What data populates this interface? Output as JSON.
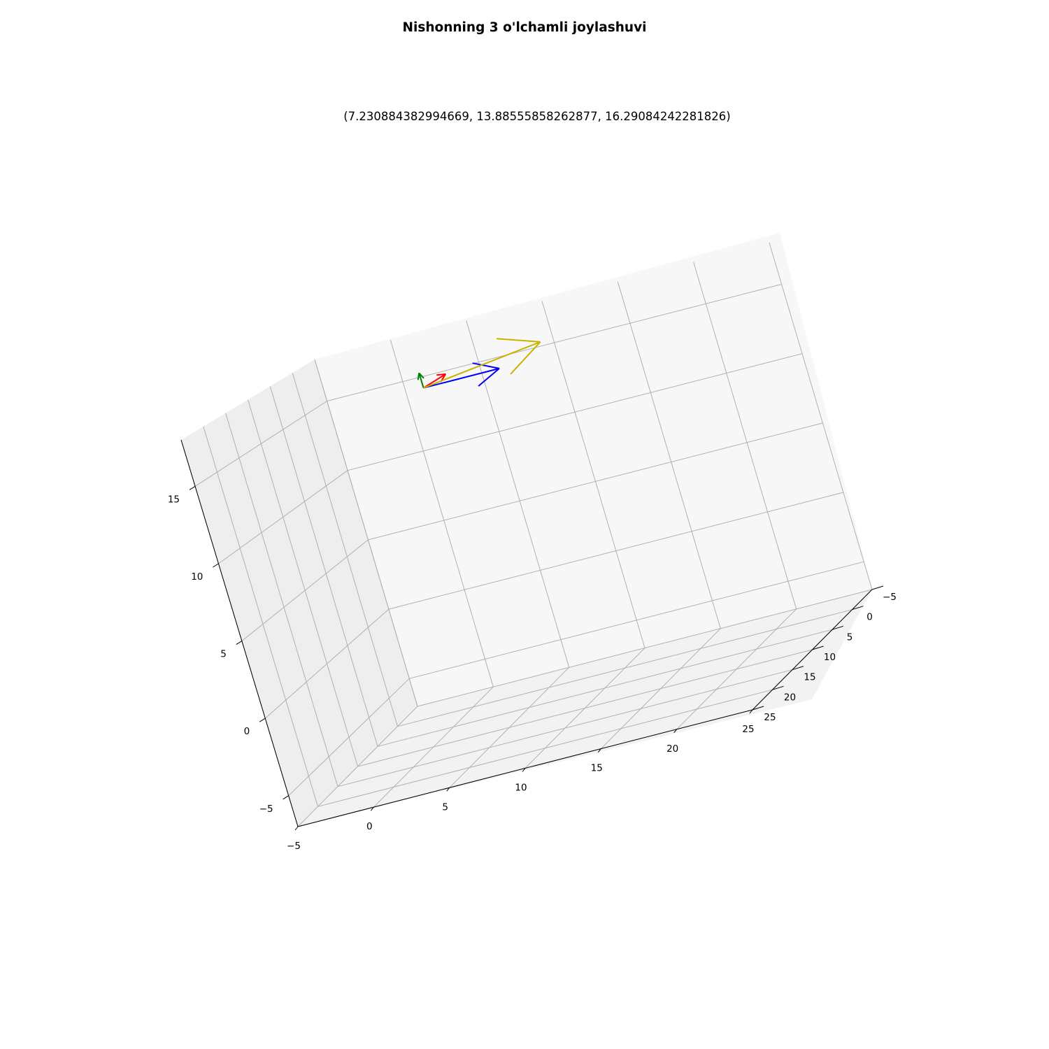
{
  "chart_data": {
    "type": "quiver3d",
    "title": "Nishonning 3 o'lchamli joylashuvi",
    "subtitle": "(7.230884382994669, 13.88555858262877, 16.29084242281826)",
    "xlabel": "",
    "ylabel": "",
    "zlabel": "",
    "grid": true,
    "axes": {
      "x": {
        "ticks": [
          -5,
          0,
          5,
          10,
          15,
          20,
          25
        ],
        "tick_labels": [
          "−5",
          "0",
          "5",
          "10",
          "15",
          "20",
          "25"
        ]
      },
      "y": {
        "ticks": [
          -5,
          0,
          5,
          10,
          15,
          20,
          25
        ],
        "tick_labels": [
          "−5",
          "0",
          "5",
          "10",
          "15",
          "20",
          "25"
        ]
      },
      "z": {
        "ticks": [
          -5,
          0,
          5,
          10,
          15
        ],
        "tick_labels": [
          "−5",
          "0",
          "5",
          "10",
          "15"
        ]
      }
    },
    "series": [
      {
        "color": "#ff0000",
        "origin": [
          7.23,
          13.89,
          16.29
        ],
        "vector": [
          0,
          -5,
          0
        ]
      },
      {
        "color": "#0000ff",
        "origin": [
          7.23,
          13.89,
          16.29
        ],
        "vector": [
          5,
          0,
          0
        ]
      },
      {
        "color": "#008000",
        "origin": [
          7.23,
          13.89,
          16.29
        ],
        "vector": [
          0,
          0,
          1
        ]
      },
      {
        "color": "#c8b400",
        "origin": [
          7.23,
          13.89,
          16.29
        ],
        "vector": [
          8,
          0,
          1
        ]
      }
    ]
  }
}
